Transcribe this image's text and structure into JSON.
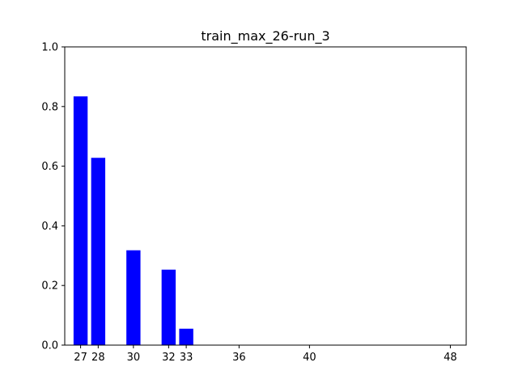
{
  "chart_data": {
    "type": "bar",
    "title": "train_max_26-run_3",
    "xlabel": "",
    "ylabel": "",
    "x": [
      27,
      28,
      30,
      32,
      33
    ],
    "values": [
      0.834,
      0.628,
      0.318,
      0.253,
      0.055
    ],
    "xticks": [
      27,
      28,
      30,
      32,
      33,
      36,
      40,
      48
    ],
    "xlim": [
      26.1,
      48.9
    ],
    "bar_width": 0.8,
    "yticks": [
      "0.0",
      "0.2",
      "0.4",
      "0.6",
      "0.8",
      "1.0"
    ],
    "ylim": [
      0,
      1
    ],
    "grid": false,
    "bar_color": "#0000ff"
  }
}
